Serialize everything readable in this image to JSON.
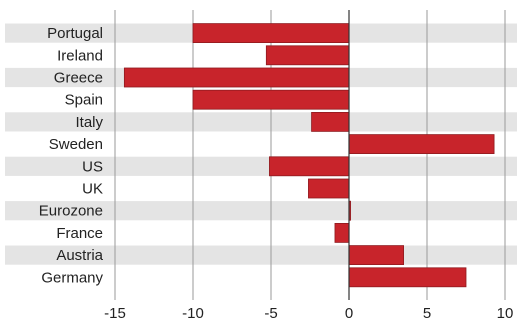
{
  "chart_data": {
    "type": "bar",
    "orientation": "horizontal",
    "categories": [
      "Portugal",
      "Ireland",
      "Greece",
      "Spain",
      "Italy",
      "Sweden",
      "US",
      "UK",
      "Eurozone",
      "France",
      "Austria",
      "Germany"
    ],
    "values": [
      -10.0,
      -5.3,
      -14.4,
      -10.0,
      -2.4,
      9.3,
      -5.1,
      -2.6,
      0.1,
      -0.9,
      3.5,
      7.5
    ],
    "xlim": [
      -15,
      10
    ],
    "xticks": [
      -15,
      -10,
      -5,
      0,
      5,
      10
    ],
    "xtick_labels": [
      "-15",
      "-10",
      "-5",
      "0",
      "5",
      "10"
    ],
    "grid": "vertical",
    "striped_rows": true,
    "title": "",
    "xlabel": "",
    "ylabel": "",
    "colors": {
      "bar": "#c8242b",
      "bar_edge": "#8f1a1f",
      "stripe": "#e4e4e4",
      "grid": "#9a9a9a",
      "zero_line": "#333333",
      "text": "#222222"
    }
  }
}
